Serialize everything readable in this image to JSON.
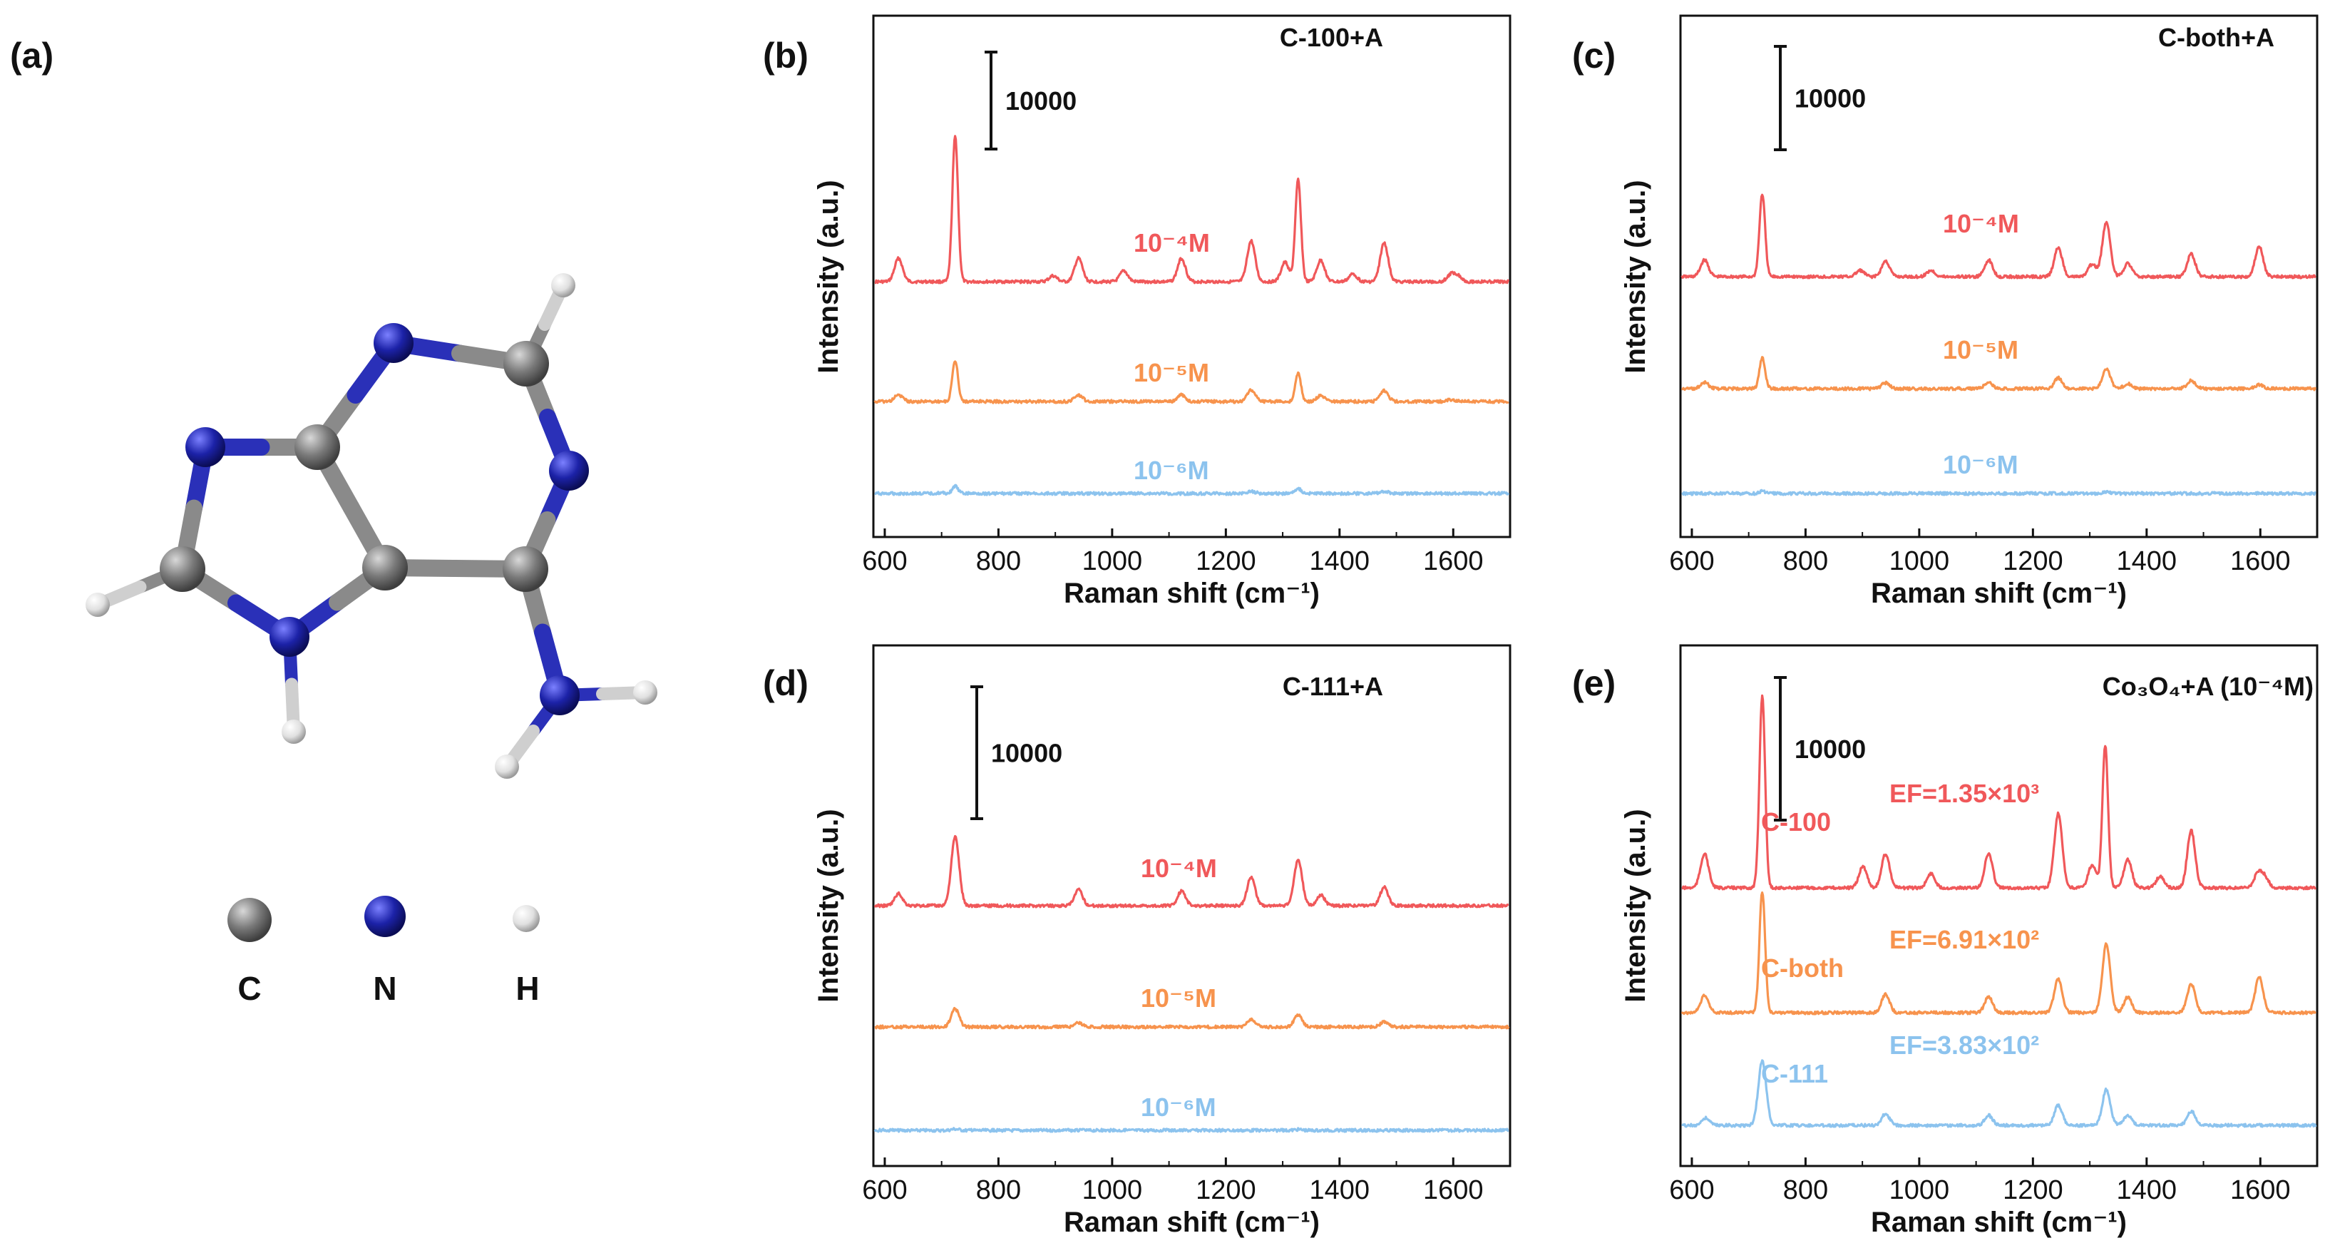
{
  "molecule": {
    "panel_label": "(a)",
    "legend": [
      {
        "symbol": "C",
        "color": "#808080"
      },
      {
        "symbol": "N",
        "color": "#1c22a8"
      },
      {
        "symbol": "H",
        "color": "#e8e8e8"
      }
    ]
  },
  "chart_data": [
    {
      "panel": "(b)",
      "type": "line",
      "title": "C-100+A",
      "xlabel": "Raman shift (cm⁻¹)",
      "ylabel": "Intensity (a.u.)",
      "xlim": [
        580,
        1700
      ],
      "xticks": [
        600,
        800,
        1000,
        1200,
        1400,
        1600
      ],
      "scale_bar": "10000",
      "scale_bar_value": 10000,
      "series": [
        {
          "name": "10⁻⁴M",
          "color": "#f0585a",
          "scale": 1.0,
          "peaks": [
            [
              622,
              2400
            ],
            [
              722,
              15000
            ],
            [
              895,
              600
            ],
            [
              940,
              2400
            ],
            [
              1020,
              1100
            ],
            [
              1122,
              2400
            ],
            [
              1245,
              4200
            ],
            [
              1305,
              2000
            ],
            [
              1328,
              10500
            ],
            [
              1368,
              2200
            ],
            [
              1425,
              800
            ],
            [
              1480,
              4000
            ],
            [
              1598,
              700
            ],
            [
              1610,
              600
            ]
          ]
        },
        {
          "name": "10⁻⁵M",
          "color": "#f7934d",
          "scale": 0.28,
          "peaks": [
            [
              622,
              2400
            ],
            [
              722,
              15000
            ],
            [
              940,
              2400
            ],
            [
              1122,
              2400
            ],
            [
              1245,
              4200
            ],
            [
              1328,
              10500
            ],
            [
              1368,
              2200
            ],
            [
              1480,
              4000
            ],
            [
              1598,
              700
            ]
          ]
        },
        {
          "name": "10⁻⁶M",
          "color": "#8cc3ee",
          "scale": 0.05,
          "peaks": [
            [
              695,
              1000
            ],
            [
              722,
              15000
            ],
            [
              1245,
              4200
            ],
            [
              1328,
              10500
            ],
            [
              1480,
              4000
            ]
          ]
        }
      ]
    },
    {
      "panel": "(c)",
      "type": "line",
      "title": "C-both+A",
      "xlabel": "Raman shift (cm⁻¹)",
      "ylabel": "Intensity (a.u.)",
      "xlim": [
        580,
        1700
      ],
      "xticks": [
        600,
        800,
        1000,
        1200,
        1400,
        1600
      ],
      "scale_bar": "10000",
      "scale_bar_value": 10000,
      "series": [
        {
          "name": "10⁻⁴M",
          "color": "#f0585a",
          "scale": 1.0,
          "peaks": [
            [
              620,
              1600
            ],
            [
              722,
              8000
            ],
            [
              895,
              600
            ],
            [
              940,
              1500
            ],
            [
              1020,
              600
            ],
            [
              1122,
              1600
            ],
            [
              1245,
              2800
            ],
            [
              1305,
              1200
            ],
            [
              1330,
              5300
            ],
            [
              1368,
              1300
            ],
            [
              1480,
              2200
            ],
            [
              1600,
              2900
            ]
          ]
        },
        {
          "name": "10⁻⁵M",
          "color": "#f7934d",
          "scale": 0.37,
          "peaks": [
            [
              620,
              1600
            ],
            [
              722,
              8000
            ],
            [
              940,
              1500
            ],
            [
              1122,
              1600
            ],
            [
              1245,
              2800
            ],
            [
              1330,
              5300
            ],
            [
              1368,
              1300
            ],
            [
              1480,
              2200
            ],
            [
              1600,
              1000
            ]
          ]
        },
        {
          "name": "10⁻⁶M",
          "color": "#8cc3ee",
          "scale": 0.03,
          "peaks": [
            [
              722,
              8000
            ],
            [
              1330,
              5300
            ]
          ]
        }
      ]
    },
    {
      "panel": "(d)",
      "type": "line",
      "title": "C-111+A",
      "xlabel": "Raman shift (cm⁻¹)",
      "ylabel": "Intensity (a.u.)",
      "xlim": [
        580,
        1700
      ],
      "xticks": [
        600,
        800,
        1000,
        1200,
        1400,
        1600
      ],
      "scale_bar": "10000",
      "scale_bar_value": 10000,
      "series": [
        {
          "name": "10⁻⁴M",
          "color": "#f0585a",
          "scale": 1.0,
          "peaks": [
            [
              622,
              900
            ],
            [
              722,
              5200
            ],
            [
              940,
              1200
            ],
            [
              1122,
              1100
            ],
            [
              1245,
              2200
            ],
            [
              1328,
              3500
            ],
            [
              1368,
              800
            ],
            [
              1480,
              1400
            ]
          ]
        },
        {
          "name": "10⁻⁵M",
          "color": "#f7934d",
          "scale": 0.26,
          "peaks": [
            [
              722,
              5200
            ],
            [
              940,
              1200
            ],
            [
              1245,
              2200
            ],
            [
              1328,
              3500
            ],
            [
              1480,
              1400
            ]
          ]
        },
        {
          "name": "10⁻⁶M",
          "color": "#8cc3ee",
          "scale": 0.02,
          "peaks": [
            [
              722,
              5200
            ],
            [
              1328,
              3500
            ]
          ]
        }
      ]
    },
    {
      "panel": "(e)",
      "type": "line",
      "title": "Co₃O₄+A (10⁻⁴M)",
      "xlabel": "Raman shift (cm⁻¹)",
      "ylabel": "Intensity (a.u.)",
      "xlim": [
        580,
        1700
      ],
      "xticks": [
        600,
        800,
        1000,
        1200,
        1400,
        1600
      ],
      "scale_bar": "10000",
      "scale_bar_value": 10000,
      "series": [
        {
          "name": "C-100",
          "ef": "EF=1.35×10³",
          "color": "#f0585a",
          "scale": 1.0,
          "peaks": [
            [
              620,
              2400
            ],
            [
              722,
              13500
            ],
            [
              900,
              1500
            ],
            [
              940,
              2400
            ],
            [
              1020,
              1000
            ],
            [
              1122,
              2400
            ],
            [
              1245,
              5200
            ],
            [
              1305,
              1600
            ],
            [
              1328,
              10000
            ],
            [
              1368,
              2000
            ],
            [
              1425,
              800
            ],
            [
              1480,
              4000
            ],
            [
              1598,
              1000
            ],
            [
              1610,
              700
            ]
          ]
        },
        {
          "name": "C-both",
          "ef": "EF=6.91×10²",
          "color": "#f7934d",
          "scale": 1.0,
          "peaks": [
            [
              620,
              1200
            ],
            [
              722,
              8500
            ],
            [
              940,
              1300
            ],
            [
              1122,
              1100
            ],
            [
              1245,
              2400
            ],
            [
              1330,
              4800
            ],
            [
              1368,
              1100
            ],
            [
              1480,
              2000
            ],
            [
              1600,
              2500
            ]
          ]
        },
        {
          "name": "C-111",
          "ef": "EF=3.83×10²",
          "color": "#8cc3ee",
          "scale": 1.0,
          "peaks": [
            [
              622,
              500
            ],
            [
              722,
              4500
            ],
            [
              940,
              800
            ],
            [
              1122,
              700
            ],
            [
              1245,
              1400
            ],
            [
              1330,
              2500
            ],
            [
              1368,
              700
            ],
            [
              1480,
              1000
            ]
          ]
        }
      ]
    }
  ]
}
